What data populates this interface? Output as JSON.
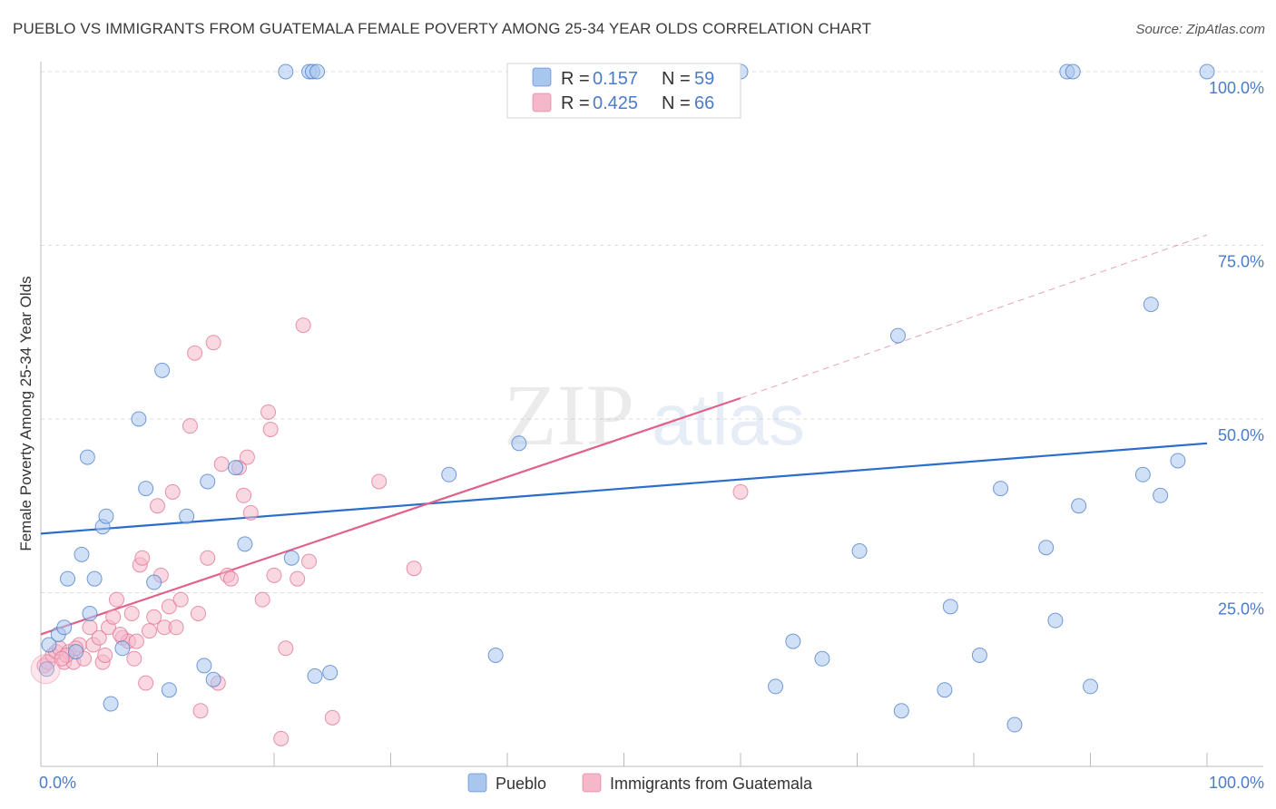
{
  "title": "PUEBLO VS IMMIGRANTS FROM GUATEMALA FEMALE POVERTY AMONG 25-34 YEAR OLDS CORRELATION CHART",
  "source": "Source: ZipAtlas.com",
  "watermark": {
    "zip": "ZIP",
    "atlas": "atlas"
  },
  "colors": {
    "blue": "#4a7cc9",
    "blue_fill": "#a9c6ee",
    "blue_line": "#2a6dcc",
    "pink": "#e0728f",
    "pink_fill": "#f5b8cb",
    "pink_line": "#e0628a"
  },
  "legend": {
    "rows": [
      {
        "r_label": "R =",
        "r_value": "0.157",
        "n_label": "N =",
        "n_value": "59"
      },
      {
        "r_label": "R =",
        "r_value": "0.425",
        "n_label": "N =",
        "n_value": "66"
      }
    ]
  },
  "chart_data": {
    "type": "scatter",
    "ylabel": "Female Poverty Among 25-34 Year Olds",
    "xlim": [
      0,
      100
    ],
    "ylim": [
      0,
      100
    ],
    "x_tick_labels": [
      "0.0%",
      "100.0%"
    ],
    "y_ticks": [
      25,
      50,
      75,
      100
    ],
    "y_tick_labels": [
      "25.0%",
      "50.0%",
      "75.0%",
      "100.0%"
    ],
    "grid": "horizontal dashed",
    "series": [
      {
        "name": "Pueblo",
        "color": "#4a7cc9",
        "points": [
          [
            0.5,
            14
          ],
          [
            0.7,
            17.5
          ],
          [
            1.5,
            19
          ],
          [
            2,
            20
          ],
          [
            2.3,
            27
          ],
          [
            3,
            16.5
          ],
          [
            3.5,
            30.5
          ],
          [
            4,
            44.5
          ],
          [
            4.2,
            22
          ],
          [
            4.6,
            27
          ],
          [
            5.3,
            34.5
          ],
          [
            5.6,
            36
          ],
          [
            6,
            9
          ],
          [
            7,
            17
          ],
          [
            8.4,
            50
          ],
          [
            9,
            40
          ],
          [
            9.7,
            26.5
          ],
          [
            10.4,
            57
          ],
          [
            11,
            11
          ],
          [
            12.5,
            36
          ],
          [
            14,
            14.5
          ],
          [
            14.3,
            41
          ],
          [
            14.8,
            12.5
          ],
          [
            16.7,
            43
          ],
          [
            17.5,
            32
          ],
          [
            21,
            100
          ],
          [
            23,
            100
          ],
          [
            23.3,
            100
          ],
          [
            21.5,
            30
          ],
          [
            23.5,
            13
          ],
          [
            24.8,
            13.5
          ],
          [
            23.7,
            100
          ],
          [
            35,
            42
          ],
          [
            39,
            16
          ],
          [
            41,
            46.5
          ],
          [
            45,
            100
          ],
          [
            60,
            100
          ],
          [
            63,
            11.5
          ],
          [
            64.5,
            18
          ],
          [
            67,
            15.5
          ],
          [
            70.2,
            31
          ],
          [
            73.5,
            62
          ],
          [
            73.8,
            8
          ],
          [
            77.5,
            11
          ],
          [
            78,
            23
          ],
          [
            80.5,
            16
          ],
          [
            82.3,
            40
          ],
          [
            83.5,
            6
          ],
          [
            86.2,
            31.5
          ],
          [
            87,
            21
          ],
          [
            88,
            100
          ],
          [
            88.5,
            100
          ],
          [
            89,
            37.5
          ],
          [
            90,
            11.5
          ],
          [
            94.5,
            42
          ],
          [
            95.2,
            66.5
          ],
          [
            96,
            39
          ],
          [
            97.5,
            44
          ],
          [
            100,
            100
          ]
        ]
      },
      {
        "name": "Immigrants from Guatemala",
        "color": "#e0728f",
        "points": [
          [
            0.3,
            14.5
          ],
          [
            0.6,
            15
          ],
          [
            1,
            16
          ],
          [
            1.3,
            16.5
          ],
          [
            1.6,
            17
          ],
          [
            2,
            15
          ],
          [
            2.4,
            16.5
          ],
          [
            2.8,
            15
          ],
          [
            3.3,
            17.5
          ],
          [
            3.7,
            15.5
          ],
          [
            4.2,
            20
          ],
          [
            4.5,
            17.5
          ],
          [
            5,
            18.5
          ],
          [
            5.3,
            15
          ],
          [
            5.8,
            20
          ],
          [
            6.2,
            21.5
          ],
          [
            6.5,
            24
          ],
          [
            7,
            18.5
          ],
          [
            7.5,
            18
          ],
          [
            7.8,
            22
          ],
          [
            8,
            15.5
          ],
          [
            8.5,
            29
          ],
          [
            8.7,
            30
          ],
          [
            9,
            12
          ],
          [
            9.3,
            19.5
          ],
          [
            9.7,
            21.5
          ],
          [
            10,
            37.5
          ],
          [
            10.3,
            27.5
          ],
          [
            10.6,
            20
          ],
          [
            11,
            23
          ],
          [
            11.3,
            39.5
          ],
          [
            11.6,
            20
          ],
          [
            12,
            24
          ],
          [
            12.8,
            49
          ],
          [
            13.2,
            59.5
          ],
          [
            13.5,
            22
          ],
          [
            13.7,
            8
          ],
          [
            14.3,
            30
          ],
          [
            14.8,
            61
          ],
          [
            15.2,
            12
          ],
          [
            15.5,
            43.5
          ],
          [
            16,
            27.5
          ],
          [
            16.3,
            27
          ],
          [
            17,
            43
          ],
          [
            17.4,
            39
          ],
          [
            17.7,
            44.5
          ],
          [
            18,
            36.5
          ],
          [
            19,
            24
          ],
          [
            19.5,
            51
          ],
          [
            19.7,
            48.5
          ],
          [
            20,
            27.5
          ],
          [
            20.6,
            4
          ],
          [
            21,
            17
          ],
          [
            22,
            27
          ],
          [
            22.5,
            63.5
          ],
          [
            23,
            29.5
          ],
          [
            25,
            7
          ],
          [
            29,
            41
          ],
          [
            32,
            28.5
          ],
          [
            60,
            39.5
          ],
          [
            3,
            17
          ],
          [
            2.2,
            16
          ],
          [
            6.8,
            19
          ],
          [
            8.2,
            18
          ],
          [
            1.8,
            15.5
          ],
          [
            5.5,
            16
          ]
        ]
      }
    ],
    "trend_lines": [
      {
        "series": "Pueblo",
        "x": [
          0,
          100
        ],
        "y": [
          33.5,
          46.5
        ],
        "style": "solid"
      },
      {
        "series": "Immigrants from Guatemala",
        "x": [
          0,
          60
        ],
        "y": [
          19,
          53
        ],
        "style": "solid"
      },
      {
        "series": "Immigrants from Guatemala",
        "x": [
          60,
          100
        ],
        "y": [
          53,
          76.5
        ],
        "style": "dashed"
      }
    ]
  }
}
